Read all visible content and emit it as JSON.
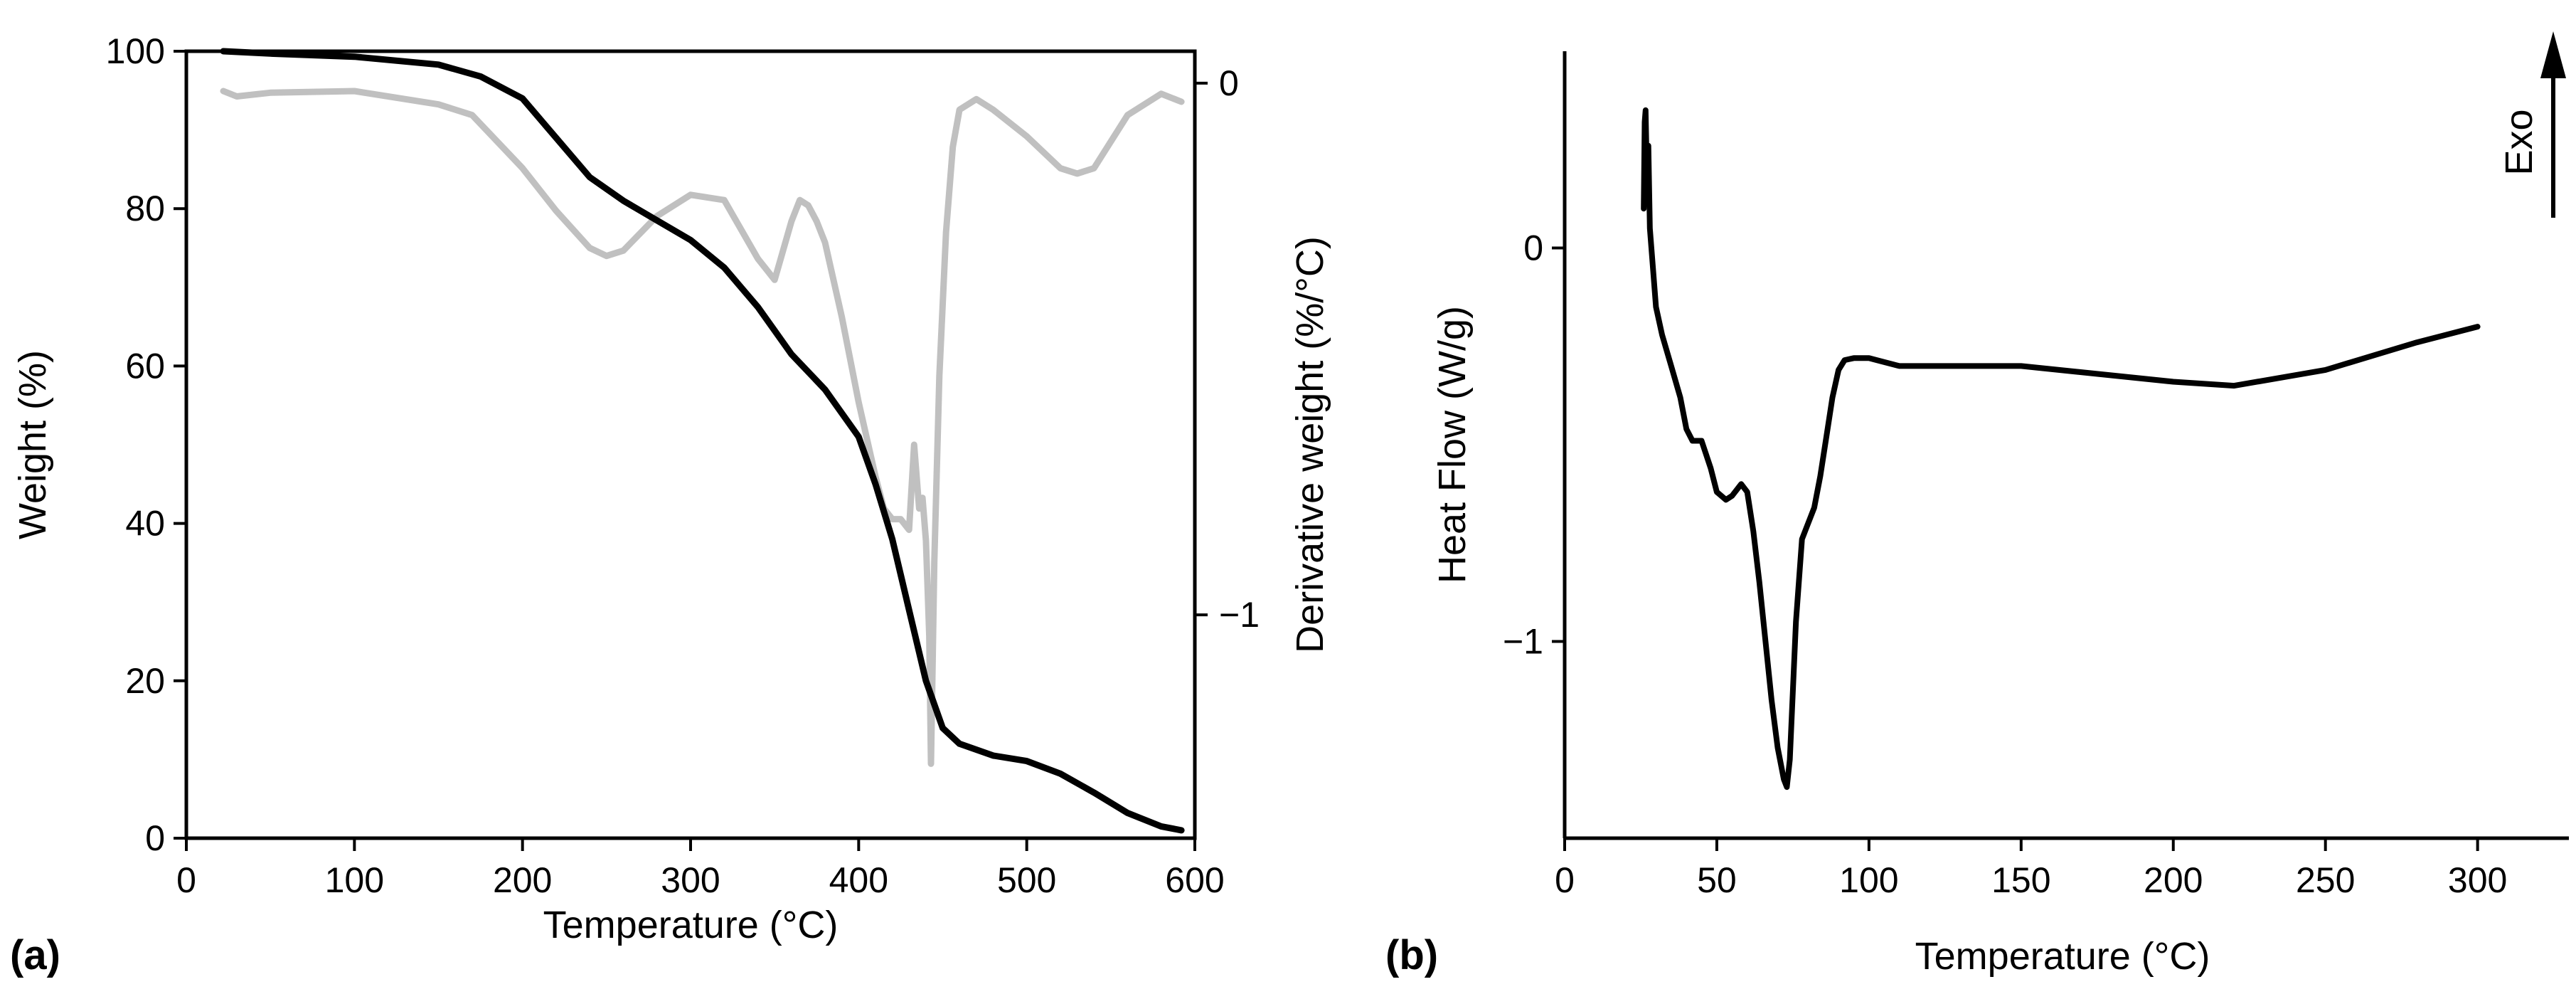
{
  "chart_data": [
    {
      "panel_label": "(a)",
      "type": "line",
      "title": "",
      "xlabel": "Temperature (°C)",
      "ylabel": "Weight (%)",
      "y2label": "Derivative weight (%/°C)",
      "xlim": [
        0,
        600
      ],
      "ylim": [
        0,
        100
      ],
      "y2lim": [
        -1.42,
        0.06
      ],
      "xticks": [
        "0",
        "100",
        "200",
        "300",
        "400",
        "500",
        "600"
      ],
      "yticks": [
        "0",
        "20",
        "40",
        "60",
        "80",
        "100"
      ],
      "y2ticks": [
        "−1",
        "0"
      ],
      "grid": false,
      "series": [
        {
          "name": "Weight",
          "axis": "left",
          "color": "#000000",
          "x": [
            22,
            50,
            100,
            150,
            175,
            200,
            220,
            240,
            260,
            280,
            300,
            320,
            340,
            350,
            360,
            380,
            400,
            410,
            420,
            430,
            440,
            450,
            460,
            480,
            500,
            520,
            540,
            560,
            580,
            592
          ],
          "y": [
            100,
            99.7,
            99.3,
            98.3,
            96.8,
            94,
            89,
            84,
            81,
            78.5,
            76,
            72.5,
            67.5,
            64.5,
            61.5,
            57,
            51,
            45,
            38,
            29,
            20,
            14,
            12,
            10.5,
            9.8,
            8.2,
            5.8,
            3.2,
            1.5,
            1
          ]
        },
        {
          "name": "Derivative weight",
          "axis": "right",
          "color": "#c0c0c0",
          "x": [
            22,
            30,
            50,
            100,
            150,
            170,
            200,
            220,
            240,
            250,
            260,
            280,
            300,
            320,
            340,
            350,
            360,
            365,
            370,
            375,
            380,
            390,
            400,
            410,
            415,
            420,
            425,
            430,
            433,
            436,
            438,
            440,
            442,
            443,
            445,
            448,
            452,
            456,
            460,
            470,
            480,
            500,
            520,
            530,
            540,
            560,
            580,
            592
          ],
          "y": [
            -0.015,
            -0.025,
            -0.018,
            -0.015,
            -0.04,
            -0.06,
            -0.16,
            -0.24,
            -0.31,
            -0.325,
            -0.315,
            -0.25,
            -0.21,
            -0.22,
            -0.33,
            -0.37,
            -0.26,
            -0.22,
            -0.23,
            -0.26,
            -0.3,
            -0.44,
            -0.6,
            -0.74,
            -0.8,
            -0.82,
            -0.82,
            -0.84,
            -0.68,
            -0.8,
            -0.78,
            -0.86,
            -1.04,
            -1.28,
            -0.9,
            -0.55,
            -0.28,
            -0.12,
            -0.05,
            -0.03,
            -0.05,
            -0.1,
            -0.16,
            -0.17,
            -0.16,
            -0.06,
            -0.02,
            -0.035
          ]
        }
      ]
    },
    {
      "panel_label": "(b)",
      "type": "line",
      "title": "",
      "xlabel": "Temperature (°C)",
      "ylabel": "Heat Flow (W/g)",
      "xlim": [
        0,
        330
      ],
      "ylim": [
        -1.5,
        0.5
      ],
      "xticks": [
        "0",
        "50",
        "100",
        "150",
        "200",
        "250",
        "300"
      ],
      "yticks": [
        "−1",
        "0"
      ],
      "grid": false,
      "annotation": "Exo",
      "series": [
        {
          "name": "Heat Flow",
          "color": "#000000",
          "x": [
            26,
            26.3,
            26.6,
            27,
            27.5,
            28,
            29,
            30,
            32,
            35,
            38,
            40,
            42,
            45,
            48,
            50,
            53,
            55,
            58,
            60,
            62,
            64,
            66,
            68,
            70,
            72,
            73,
            74,
            76,
            78,
            80,
            82,
            84,
            86,
            88,
            90,
            92,
            95,
            100,
            105,
            110,
            150,
            200,
            220,
            250,
            280,
            300
          ],
          "y": [
            0.1,
            0.32,
            0.35,
            0.2,
            0.26,
            0.05,
            -0.05,
            -0.15,
            -0.22,
            -0.3,
            -0.38,
            -0.46,
            -0.49,
            -0.49,
            -0.56,
            -0.62,
            -0.64,
            -0.63,
            -0.6,
            -0.62,
            -0.72,
            -0.85,
            -1.0,
            -1.15,
            -1.27,
            -1.35,
            -1.37,
            -1.3,
            -0.95,
            -0.74,
            -0.7,
            -0.66,
            -0.58,
            -0.48,
            -0.38,
            -0.31,
            -0.285,
            -0.28,
            -0.28,
            -0.29,
            -0.3,
            -0.3,
            -0.34,
            -0.35,
            -0.31,
            -0.24,
            -0.2
          ]
        }
      ]
    }
  ]
}
